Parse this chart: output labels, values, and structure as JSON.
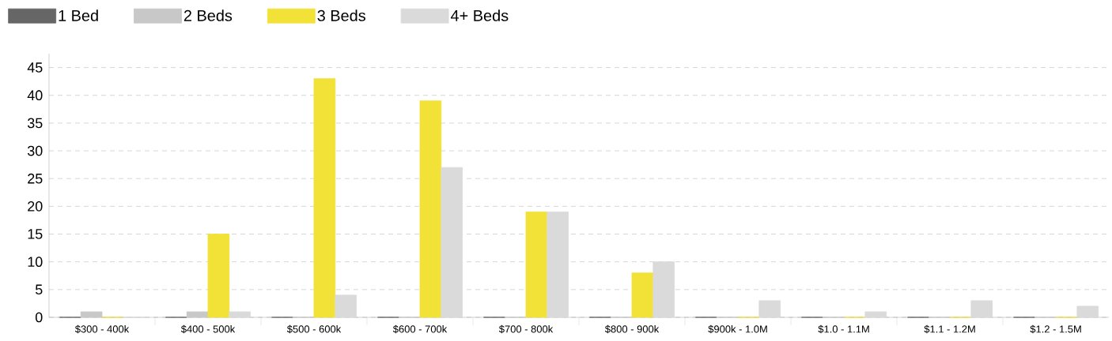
{
  "chart_data": {
    "type": "bar",
    "categories": [
      "$300 - 400k",
      "$400 - 500k",
      "$500 - 600k",
      "$600 - 700k",
      "$700 - 800k",
      "$800 - 900k",
      "$900k - 1.0M",
      "$1.0 - 1.1M",
      "$1.1 - 1.2M",
      "$1.2 - 1.5M"
    ],
    "series": [
      {
        "name": "1 Bed",
        "color": "#666666",
        "values": [
          0,
          0,
          0,
          0,
          0,
          0,
          0,
          0,
          0,
          0
        ]
      },
      {
        "name": "2 Beds",
        "color": "#c8c8c8",
        "values": [
          1,
          1,
          0,
          0,
          0,
          0,
          0,
          0,
          0,
          0
        ]
      },
      {
        "name": "3 Beds",
        "color": "#f2e137",
        "values": [
          0,
          15,
          43,
          39,
          19,
          8,
          0,
          0,
          0,
          0
        ]
      },
      {
        "name": "4+ Beds",
        "color": "#dadada",
        "values": [
          0,
          1,
          4,
          27,
          19,
          10,
          3,
          1,
          3,
          2
        ]
      }
    ],
    "ylim": [
      0,
      47.5
    ],
    "yticks": [
      0,
      5,
      10,
      15,
      20,
      25,
      30,
      35,
      40,
      45
    ],
    "grid": "y",
    "legend": "top left"
  }
}
